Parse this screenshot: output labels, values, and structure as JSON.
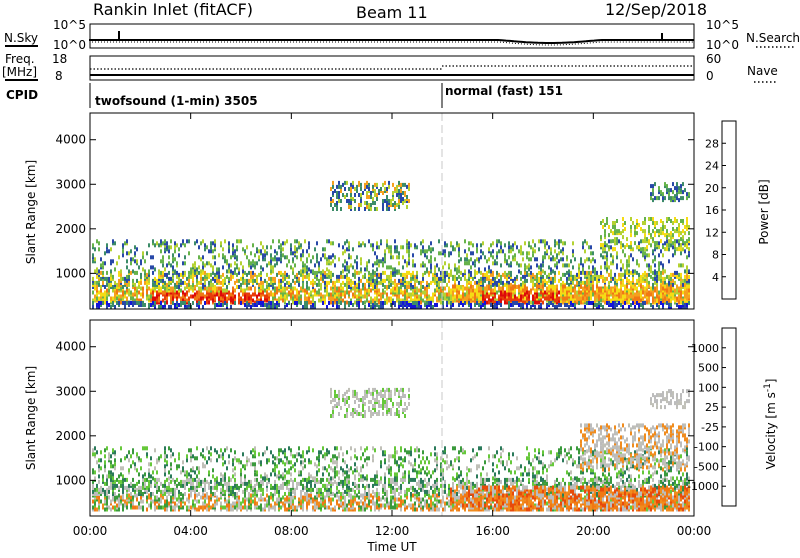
{
  "header": {
    "title": "Rankin Inlet (fitACF)",
    "beam": "Beam 11",
    "date": "12/Sep/2018"
  },
  "noise_panel": {
    "left_label": "N.Sky",
    "left_ticks": [
      "10^5",
      "10^0"
    ],
    "right_label": "N.Search",
    "right_ticks": [
      "10^5",
      "10^0"
    ]
  },
  "freq_panel": {
    "left_label_1": "Freq.",
    "left_label_2": "[MHz]",
    "left_ticks": [
      "18",
      "8"
    ],
    "right_label": "Nave",
    "right_ticks": [
      "60",
      "0"
    ]
  },
  "cpid_panel": {
    "label": "CPID",
    "segments": [
      {
        "text": "twofsound (1-min) 3505"
      },
      {
        "text": "normal (fast) 151"
      }
    ]
  },
  "chart_data": [
    {
      "type": "heatmap",
      "name": "power",
      "ylabel": "Slant Range [km]",
      "yticks": [
        "1000",
        "2000",
        "3000",
        "4000"
      ],
      "ylim": [
        200,
        4600
      ],
      "xlim_hours": [
        0,
        24
      ],
      "colorbar_label": "Power [dB]",
      "colorbar_ticks": [
        "4",
        "8",
        "12",
        "16",
        "20",
        "24",
        "28"
      ],
      "colorbar_colors": [
        "#1414d8",
        "#2848a8",
        "#3c8c68",
        "#66b34a",
        "#b4d232",
        "#f5dc14",
        "#f5a01e",
        "#f07814",
        "#e83c0a",
        "#dc0a0a"
      ]
    },
    {
      "type": "heatmap",
      "name": "velocity",
      "ylabel": "Slant Range [km]",
      "yticks": [
        "1000",
        "2000",
        "3000",
        "4000"
      ],
      "ylim": [
        200,
        4600
      ],
      "xlim_hours": [
        0,
        24
      ],
      "colorbar_label": "Velocity [m s",
      "colorbar_label_sup": "-1",
      "colorbar_label_end": "]",
      "colorbar_ticks": [
        "1000",
        "500",
        "100",
        "25",
        "-25",
        "-100",
        "-500",
        "-1000"
      ],
      "colorbar_colors": [
        "#1e3c96",
        "#2f5cb2",
        "#2a7a5a",
        "#3a9a3c",
        "#66c83a",
        "#c0c0b8",
        "#bcbcbc",
        "#f08c1e",
        "#f07814",
        "#e84a0a",
        "#dc1e0a"
      ]
    }
  ],
  "xaxis": {
    "ticks": [
      "00:00",
      "04:00",
      "08:00",
      "12:00",
      "16:00",
      "20:00",
      "00:00"
    ],
    "label": "Time UT"
  }
}
